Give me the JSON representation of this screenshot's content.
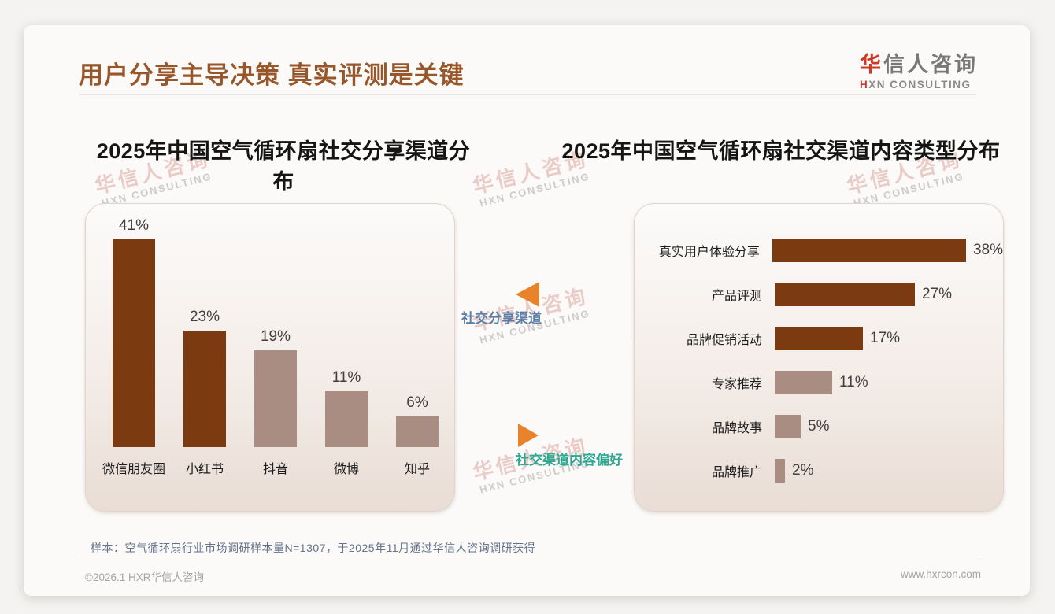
{
  "page": {
    "title": "用户分享主导决策 真实评测是关键",
    "logo": {
      "cn_first": "华",
      "cn_rest": "信人咨询",
      "en_first": "H",
      "en_rest": "XN CONSULTING"
    },
    "watermark": {
      "cn": "华信人咨询",
      "en": "HXN CONSULTING"
    },
    "sample_note": "样本：空气循环扇行业市场调研样本量N=1307，于2025年11月通过华信人咨询调研获得",
    "footer": {
      "left": "©2026.1 HXR华信人咨询",
      "right": "www.hxrcon.com"
    }
  },
  "annotations": {
    "share_channel_label": "社交分享渠道",
    "content_pref_label": "社交渠道内容偏好"
  },
  "colors": {
    "title_brown": "#98572B",
    "bar_dark": "#7C3A10",
    "bar_light": "#A98D83",
    "accent_orange": "#E8832B",
    "label_blue": "#5B7FA8",
    "label_teal": "#2FA893",
    "logo_red": "#CE3A28"
  },
  "chart_data": [
    {
      "type": "bar",
      "orientation": "vertical",
      "title": "2025年中国空气循环扇社交分享渠道分布",
      "categories": [
        "微信朋友圈",
        "小红书",
        "抖音",
        "微博",
        "知乎"
      ],
      "values": [
        41,
        23,
        19,
        11,
        6
      ],
      "value_labels": [
        "41%",
        "23%",
        "19%",
        "11%",
        "6%"
      ],
      "bar_colors": [
        "#7C3A10",
        "#7C3A10",
        "#A98D83",
        "#A98D83",
        "#A98D83"
      ],
      "ylim": [
        0,
        45
      ],
      "grid": false,
      "legend": "none"
    },
    {
      "type": "bar",
      "orientation": "horizontal",
      "title": "2025年中国空气循环扇社交渠道内容类型分布",
      "categories": [
        "真实用户体验分享",
        "产品评测",
        "品牌促销活动",
        "专家推荐",
        "品牌故事",
        "品牌推广"
      ],
      "values": [
        38,
        27,
        17,
        11,
        5,
        2
      ],
      "value_labels": [
        "38%",
        "27%",
        "17%",
        "11%",
        "5%",
        "2%"
      ],
      "bar_colors": [
        "#7C3A10",
        "#7C3A10",
        "#7C3A10",
        "#A98D83",
        "#A98D83",
        "#A98D83"
      ],
      "xlim": [
        0,
        40
      ],
      "grid": false,
      "legend": "none"
    }
  ]
}
